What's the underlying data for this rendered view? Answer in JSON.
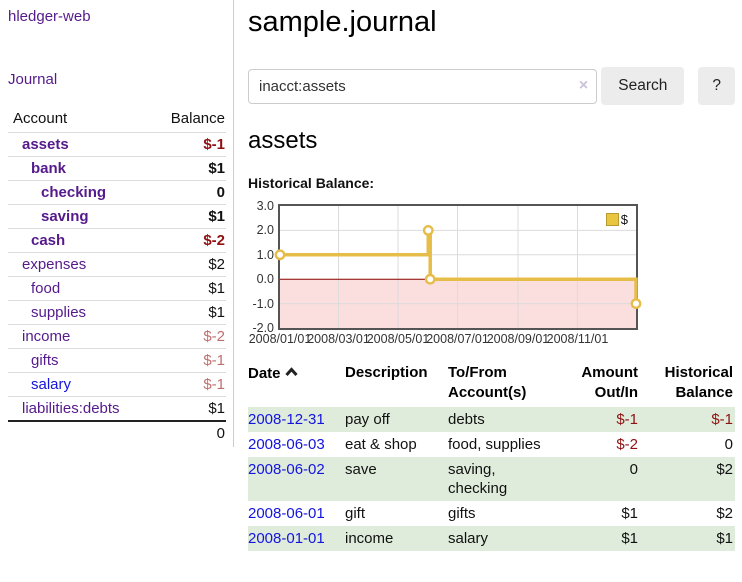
{
  "app": {
    "brand": "hledger-web"
  },
  "sidebar": {
    "nav_journal": "Journal",
    "accounts": {
      "headers": {
        "account": "Account",
        "balance": "Balance"
      },
      "rows": [
        {
          "name": "assets",
          "balance": "$-1"
        },
        {
          "name": "bank",
          "balance": "$1"
        },
        {
          "name": "checking",
          "balance": "0"
        },
        {
          "name": "saving",
          "balance": "$1"
        },
        {
          "name": "cash",
          "balance": "$-2"
        },
        {
          "name": "expenses",
          "balance": "$2"
        },
        {
          "name": "food",
          "balance": "$1"
        },
        {
          "name": "supplies",
          "balance": "$1"
        },
        {
          "name": "income",
          "balance": "$-2"
        },
        {
          "name": "gifts",
          "balance": "$-1"
        },
        {
          "name": "salary",
          "balance": "$-1"
        },
        {
          "name": "liabilities:debts",
          "balance": "$1"
        }
      ],
      "total": "0"
    }
  },
  "main": {
    "title": "sample.journal",
    "search": {
      "value": "inacct:assets",
      "clear_icon": "×",
      "button_label": "Search",
      "help_label": "?"
    },
    "account_heading": "assets",
    "chart_label": "Historical Balance:",
    "register": {
      "headers": {
        "date": "Date",
        "description": "Description",
        "accounts": "To/From Account(s)",
        "amount": "Amount Out/In",
        "balance": "Historical Balance"
      },
      "rows": [
        {
          "date": "2008-12-31",
          "description": "pay off",
          "accounts": "debts",
          "amount": "$-1",
          "balance": "$-1"
        },
        {
          "date": "2008-06-03",
          "description": "eat & shop",
          "accounts": "food, supplies",
          "amount": "$-2",
          "balance": "0"
        },
        {
          "date": "2008-06-02",
          "description": "save",
          "accounts": "saving,\nchecking",
          "amount": "0",
          "balance": "$2"
        },
        {
          "date": "2008-06-01",
          "description": "gift",
          "accounts": "gifts",
          "amount": "$1",
          "balance": "$2"
        },
        {
          "date": "2008-01-01",
          "description": "income",
          "accounts": "salary",
          "amount": "$1",
          "balance": "$1"
        }
      ]
    }
  },
  "chart_data": {
    "type": "line",
    "step": true,
    "title": "Historical Balance",
    "series": [
      {
        "name": "$",
        "color": "#e7bd4a",
        "points": [
          [
            "2008-01-01",
            1
          ],
          [
            "2008-06-01",
            2
          ],
          [
            "2008-06-03",
            0
          ],
          [
            "2008-12-31",
            -1
          ]
        ]
      }
    ],
    "x_range": [
      "2008-01-01",
      "2008-12-31"
    ],
    "ylim": [
      -2,
      3
    ],
    "y_ticks": [
      {
        "v": 3,
        "label": "3.0"
      },
      {
        "v": 2,
        "label": "2.0"
      },
      {
        "v": 1,
        "label": "1.0"
      },
      {
        "v": 0,
        "label": "0.0"
      },
      {
        "v": -1,
        "label": "-1.0"
      },
      {
        "v": -2,
        "label": "-2.0"
      }
    ],
    "x_ticks": [
      {
        "date": "2008-01-01",
        "label": "2008/01/01"
      },
      {
        "date": "2008-03-01",
        "label": "2008/03/01"
      },
      {
        "date": "2008-05-01",
        "label": "2008/05/01"
      },
      {
        "date": "2008-07-01",
        "label": "2008/07/01"
      },
      {
        "date": "2008-09-01",
        "label": "2008/09/01"
      },
      {
        "date": "2008-11-01",
        "label": "2008/11/01"
      }
    ],
    "grid": true,
    "legend_position": "top-right",
    "negative_region_color": "#fbdede",
    "zero_line_color": "#8b0000"
  },
  "colors": {
    "link_purple": "#551a8b",
    "link_blue": "#1414dd",
    "neg_dark": "#8f1212",
    "neg_light": "#bf6f6f",
    "stripe_green": "#dfecdb",
    "chart_yellow": "#e7bd4a",
    "neg_region": "#fbdede",
    "zero_line": "#8b0000"
  }
}
